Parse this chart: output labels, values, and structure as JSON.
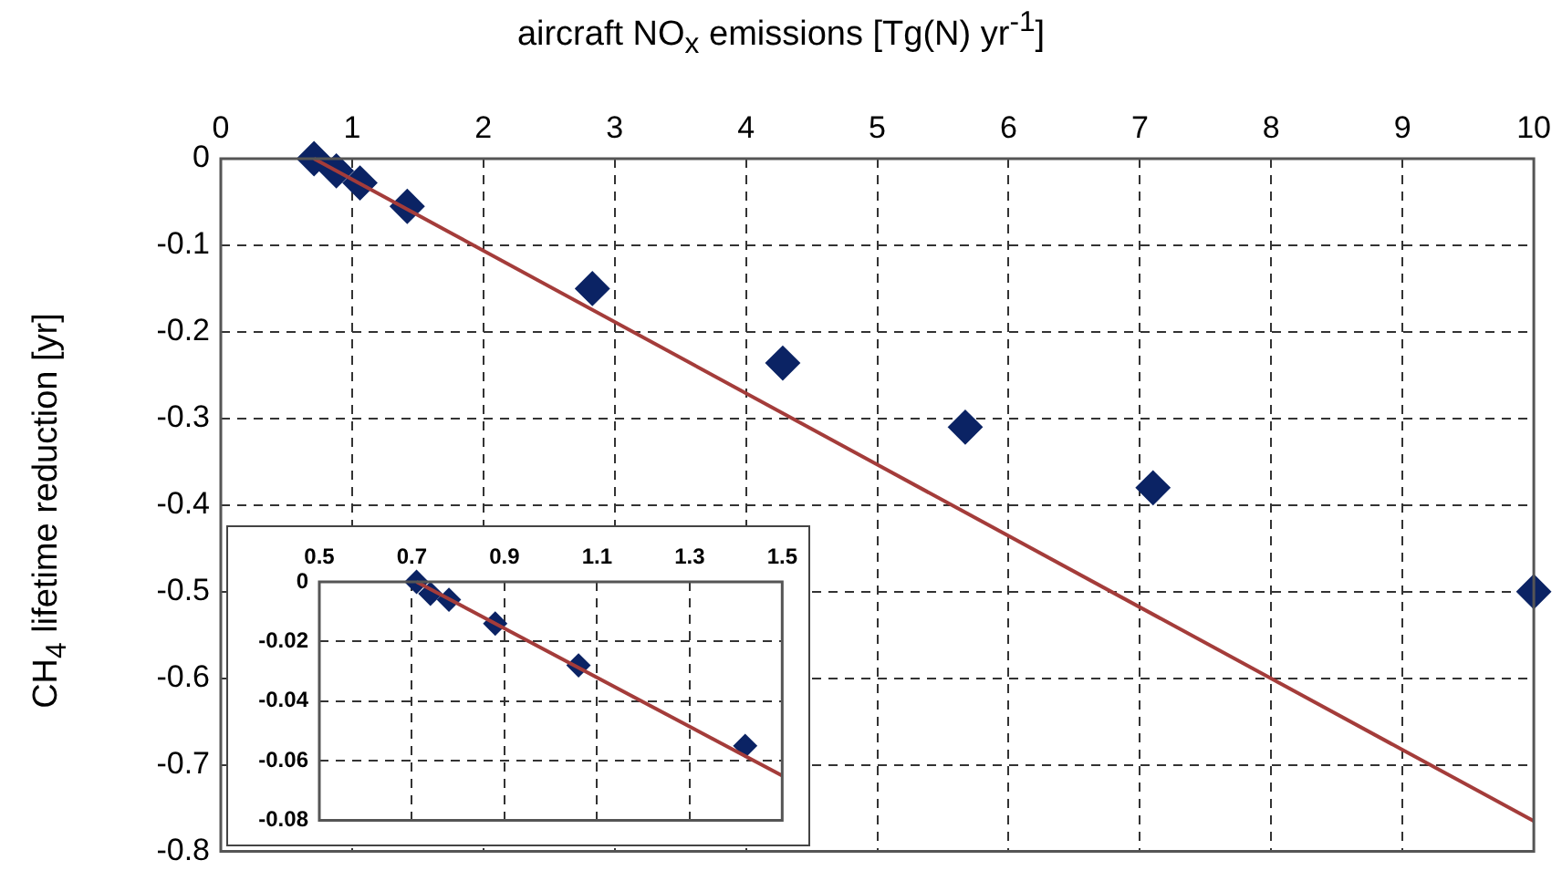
{
  "chart_data": [
    {
      "type": "scatter",
      "xlabel": "aircraft NO$_{x}$ emissions [Tg(N) yr$^{-1}$]",
      "ylabel": "CH$_{4}$ lifetime reduction [yr]",
      "xlim": [
        0,
        10
      ],
      "xticks": [
        0,
        1,
        2,
        3,
        4,
        5,
        6,
        7,
        8,
        9,
        10
      ],
      "ylim": [
        -0.8,
        0
      ],
      "yticks": [
        -0.8,
        -0.7,
        -0.6,
        -0.5,
        -0.4,
        -0.3,
        -0.2,
        -0.1,
        0
      ],
      "grid": true,
      "series": [
        {
          "type": "scatter",
          "color": "#0b2364",
          "marker": "diamond",
          "x": [
            0.71,
            0.72,
            0.74,
            0.78,
            0.88,
            1.06,
            1.42,
            2.83,
            4.28,
            5.67,
            7.1,
            10
          ],
          "values": [
            0,
            null,
            null,
            null,
            -0.014,
            -0.028,
            -0.055,
            -0.15,
            -0.236,
            -0.31,
            -0.38,
            -0.5
          ]
        },
        {
          "type": "line",
          "color": "#a43c3a",
          "marker": "none",
          "x": [
            0.71,
            10
          ],
          "values": [
            0,
            -0.765
          ]
        }
      ]
    },
    {
      "type": "scatter",
      "xlim": [
        0.5,
        1.5
      ],
      "xticks": [
        0.5,
        0.7,
        0.9,
        1.1,
        1.3,
        1.5
      ],
      "ylim": [
        -0.08,
        0
      ],
      "yticks": [
        -0.08,
        -0.06,
        -0.04,
        -0.02,
        0
      ],
      "grid": true,
      "series": [
        {
          "type": "scatter",
          "color": "#0b2364",
          "marker": "diamond",
          "x": [
            0.71,
            0.72,
            0.74,
            0.78,
            0.88,
            1.06,
            1.42
          ],
          "values": [
            0,
            null,
            -0.004,
            -0.006,
            -0.014,
            -0.028,
            -0.055
          ]
        },
        {
          "type": "line",
          "color": "#a43c3a",
          "marker": "none",
          "x": [
            0.71,
            1.5
          ],
          "values": [
            0,
            -0.065
          ]
        }
      ]
    }
  ]
}
